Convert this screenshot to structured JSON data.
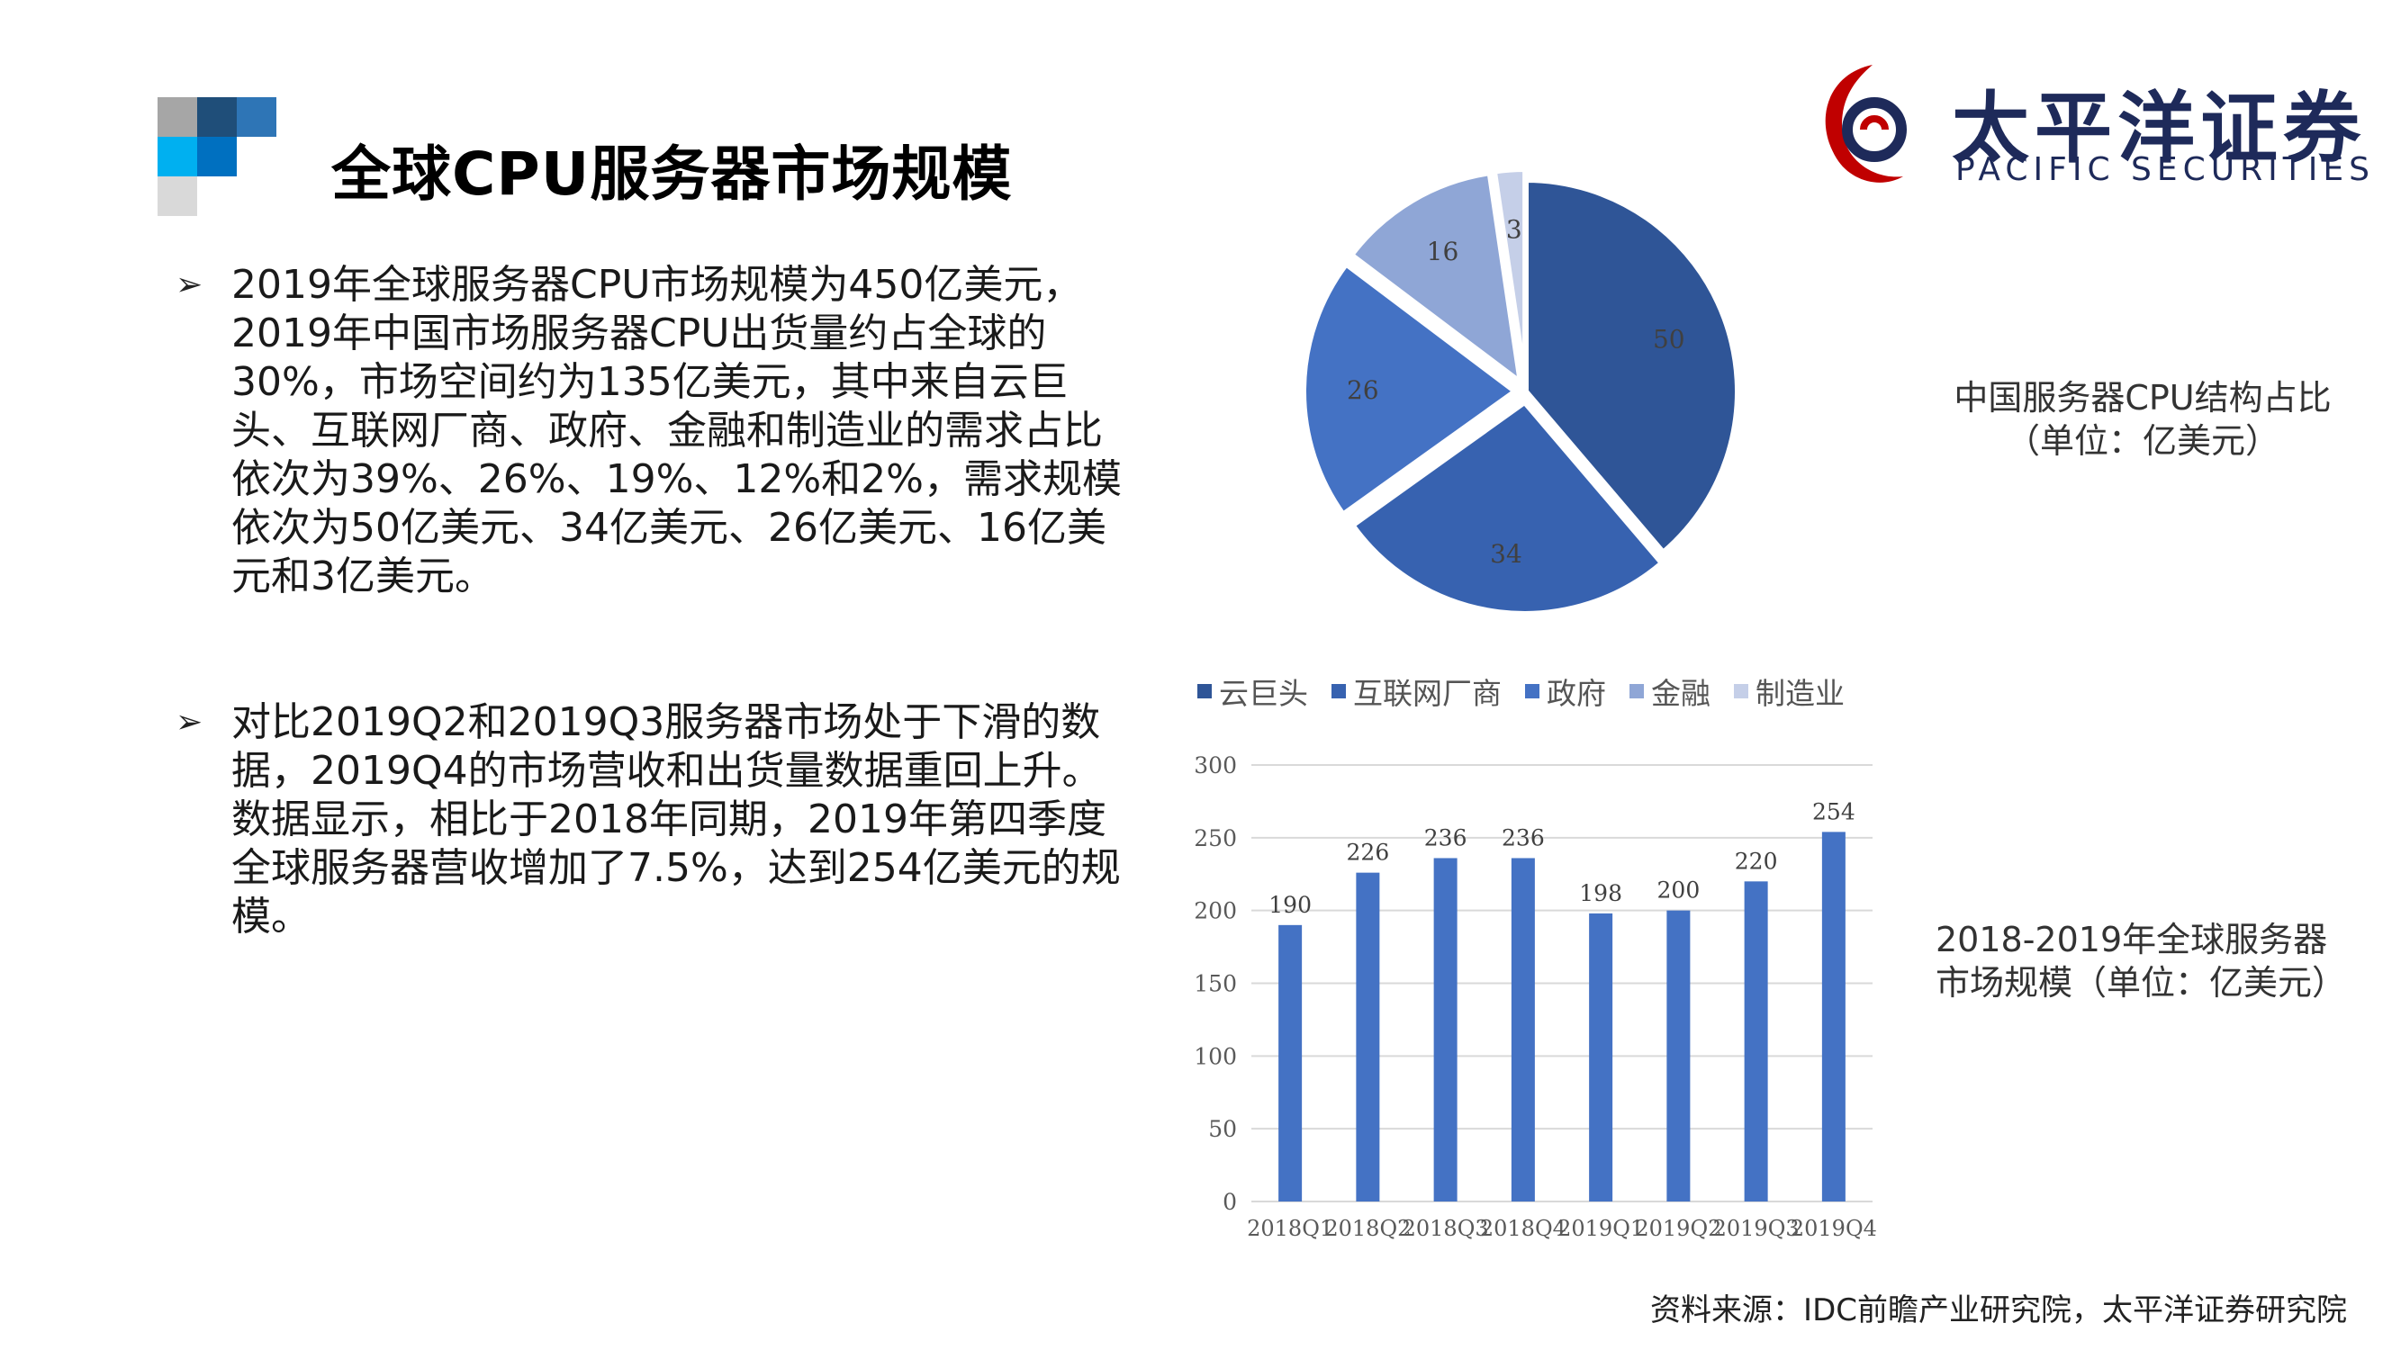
{
  "header": {
    "title": "全球CPU服务器市场规模"
  },
  "logo": {
    "cn": "太平洋证券",
    "en": "PACIFIC SECURITIES"
  },
  "bullets": [
    {
      "text": "2019年全球服务器CPU市场规模为450亿美元，2019年中国市场服务器CPU出货量约占全球的30%，市场空间约为135亿美元，其中来自云巨头、互联网厂商、政府、金融和制造业的需求占比依次为39%、26%、19%、12%和2%，需求规模依次为50亿美元、34亿美元、26亿美元、16亿美元和3亿美元。"
    },
    {
      "text": "对比2019Q2和2019Q3服务器市场处于下滑的数据，2019Q4的市场营收和出货量数据重回上升。数据显示，相比于2018年同期，2019年第四季度全球服务器营收增加了7.5%，达到254亿美元的规模。"
    }
  ],
  "pie_caption": "中国服务器CPU结构占比\n（单位：亿美元）",
  "bar_caption": "2018-2019年全球服务器\n市场规模（单位：亿美元）",
  "source": "资料来源：IDC前瞻产业研究院，太平洋证券研究院",
  "chart_data": [
    {
      "type": "pie",
      "title": "",
      "categories": [
        "云巨头",
        "互联网厂商",
        "政府",
        "金融",
        "制造业"
      ],
      "values": [
        50,
        34,
        26,
        16,
        3
      ],
      "labels": [
        "50",
        "34",
        "26",
        "16",
        "3"
      ],
      "colors": [
        "#2f5597",
        "#3762b0",
        "#4472c4",
        "#8fa6d6",
        "#c5cfe8"
      ],
      "legend": "above bar chart, horizontal"
    },
    {
      "type": "bar",
      "title": "",
      "categories": [
        "2018Q1",
        "2018Q2",
        "2018Q3",
        "2018Q4",
        "2019Q1",
        "2019Q2",
        "2019Q3",
        "2019Q4"
      ],
      "values": [
        190,
        226,
        236,
        236,
        198,
        200,
        220,
        254
      ],
      "labels": [
        "190",
        "226",
        "236",
        "236",
        "198",
        "200",
        "220",
        "254"
      ],
      "yticks": [
        "0",
        "50",
        "100",
        "150",
        "200",
        "250",
        "300"
      ],
      "ylim": [
        0,
        300
      ],
      "grid": true,
      "color": "#4472c4"
    }
  ]
}
